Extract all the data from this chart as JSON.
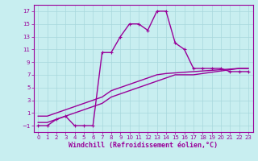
{
  "xlabel": "Windchill (Refroidissement éolien,°C)",
  "bg_color": "#c8eef0",
  "grid_color": "#a8d8dc",
  "line_color": "#990099",
  "xlim": [
    -0.5,
    23.5
  ],
  "ylim": [
    -2,
    18
  ],
  "xticks": [
    0,
    1,
    2,
    3,
    4,
    5,
    6,
    7,
    8,
    9,
    10,
    11,
    12,
    13,
    14,
    15,
    16,
    17,
    18,
    19,
    20,
    21,
    22,
    23
  ],
  "yticks": [
    -1,
    1,
    3,
    5,
    7,
    9,
    11,
    13,
    15,
    17
  ],
  "line1_x": [
    0,
    1,
    2,
    3,
    4,
    5,
    6,
    7,
    8,
    9,
    10,
    11,
    12,
    13,
    14,
    15,
    16,
    17,
    18,
    19,
    20,
    21,
    22,
    23
  ],
  "line1_y": [
    -1,
    -1,
    0,
    0.5,
    -1,
    -1,
    -1,
    10.5,
    10.5,
    13,
    15,
    15,
    14,
    17,
    17,
    12,
    11,
    8,
    8,
    8,
    8,
    7.5,
    7.5,
    7.5
  ],
  "line2_x": [
    0,
    1,
    2,
    3,
    4,
    5,
    6,
    7,
    8,
    9,
    10,
    11,
    12,
    13,
    14,
    15,
    16,
    17,
    18,
    19,
    20,
    21,
    22,
    23
  ],
  "line2_y": [
    -0.5,
    -0.5,
    0,
    0.5,
    1,
    1.5,
    2,
    2.5,
    3.5,
    4,
    4.5,
    5,
    5.5,
    6,
    6.5,
    7,
    7,
    7,
    7.2,
    7.4,
    7.6,
    7.8,
    8,
    8
  ],
  "line3_x": [
    0,
    1,
    2,
    3,
    4,
    5,
    6,
    7,
    8,
    9,
    10,
    11,
    12,
    13,
    14,
    15,
    16,
    17,
    18,
    19,
    20,
    21,
    22,
    23
  ],
  "line3_y": [
    0.5,
    0.5,
    1,
    1.5,
    2,
    2.5,
    3,
    3.5,
    4.5,
    5,
    5.5,
    6,
    6.5,
    7,
    7.2,
    7.3,
    7.4,
    7.5,
    7.6,
    7.7,
    7.8,
    7.9,
    8,
    8
  ],
  "line_width": 1.0,
  "font_size_tick": 5.0,
  "font_size_label": 6.0
}
